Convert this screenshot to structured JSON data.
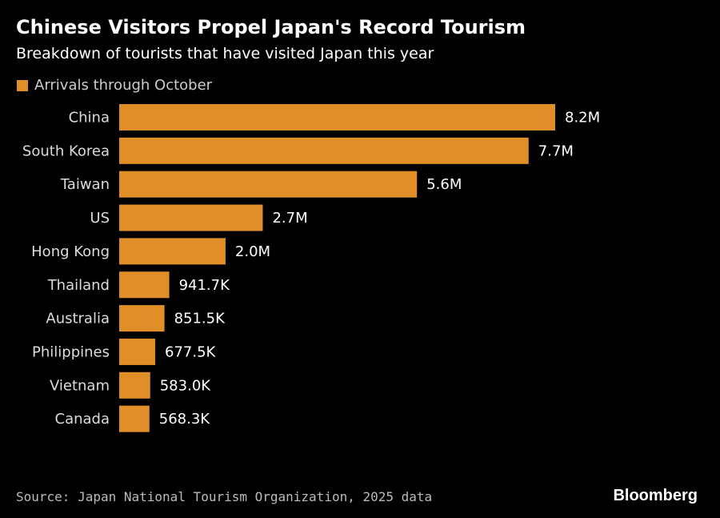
{
  "title": "Chinese Visitors Propel Japan's Record Tourism",
  "subtitle": "Breakdown of tourists that have visited Japan this year",
  "source": "Source: Japan National Tourism Organization, 2025 data",
  "brand": "Bloomberg",
  "colors": {
    "bar": "#e08e27",
    "background": "#000000",
    "text": "#ffffff"
  },
  "chart_data": {
    "type": "bar",
    "orientation": "horizontal",
    "categories": [
      "China",
      "South Korea",
      "Taiwan",
      "US",
      "Hong Kong",
      "Thailand",
      "Australia",
      "Philippines",
      "Vietnam",
      "Canada"
    ],
    "series": [
      {
        "name": "Arrivals through October",
        "values": [
          8200000,
          7700000,
          5600000,
          2700000,
          2000000,
          941700,
          851500,
          677500,
          583000,
          568300
        ],
        "labels": [
          "8.2M",
          "7.7M",
          "5.6M",
          "2.7M",
          "2.0M",
          "941.7K",
          "851.5K",
          "677.5K",
          "583.0K",
          "568.3K"
        ]
      }
    ],
    "xlim": [
      0,
      8200000
    ],
    "grid": false,
    "legend": "top-left"
  }
}
